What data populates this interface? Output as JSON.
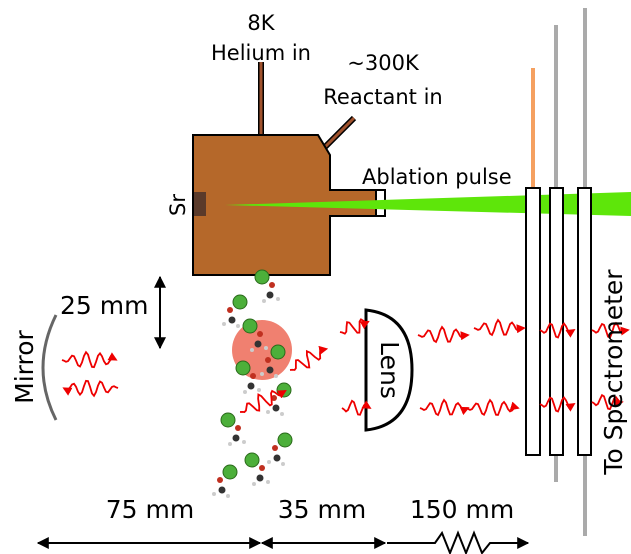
{
  "labels": {
    "helium_temp": "8K",
    "helium": "Helium in",
    "reactant_temp": "~300K",
    "reactant": "Reactant in",
    "ablation": "Ablation pulse",
    "target": "Sr",
    "beam_size": "25 mm",
    "mirror": "Mirror",
    "lens": "Lens",
    "spectrometer": "To Spectrometer"
  },
  "distances": [
    "75 mm",
    "35 mm",
    "150 mm"
  ]
}
